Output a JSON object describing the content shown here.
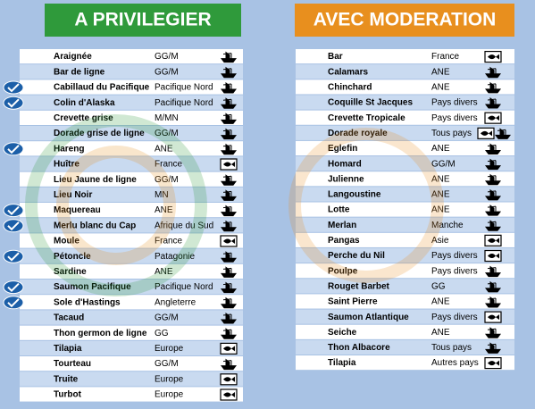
{
  "left": {
    "title": "A PRIVILEGIER",
    "rows": [
      [
        "Araignée",
        "GG/M"
      ],
      [
        "Bar de ligne",
        "GG/M"
      ],
      [
        "Cabillaud du Pacifique",
        "Pacifique Nord"
      ],
      [
        "Colin d'Alaska",
        "Pacifique Nord"
      ],
      [
        "Crevette grise",
        "M/MN"
      ],
      [
        "Dorade grise de ligne",
        "GG/M"
      ],
      [
        "Hareng",
        "ANE"
      ],
      [
        "Huître",
        "France"
      ],
      [
        "Lieu Jaune de ligne",
        "GG/M"
      ],
      [
        "Lieu Noir",
        "MN"
      ],
      [
        "Maquereau",
        "ANE"
      ],
      [
        "Merlu blanc du Cap",
        "Afrique du Sud"
      ],
      [
        "Moule",
        "France"
      ],
      [
        "Pétoncle",
        "Patagonie"
      ],
      [
        "Sardine",
        "ANE"
      ],
      [
        "Saumon Pacifique",
        "Pacifique Nord"
      ],
      [
        "Sole d'Hastings",
        "Angleterre"
      ],
      [
        "Tacaud",
        "GG/M"
      ],
      [
        "Thon germon de ligne",
        "GG"
      ],
      [
        "Tilapia",
        "Europe"
      ],
      [
        "Tourteau",
        "GG/M"
      ],
      [
        "Truite",
        "Europe"
      ],
      [
        "Turbot",
        "Europe"
      ]
    ]
  },
  "right": {
    "title": "AVEC MODERATION",
    "rows": [
      [
        "Bar",
        "France"
      ],
      [
        "Calamars",
        "ANE"
      ],
      [
        "Chinchard",
        "ANE"
      ],
      [
        "Coquille St Jacques",
        "Pays divers"
      ],
      [
        "Crevette Tropicale",
        "Pays divers"
      ],
      [
        "Dorade royale",
        "Tous pays"
      ],
      [
        "Eglefin",
        "ANE"
      ],
      [
        "Homard",
        "GG/M"
      ],
      [
        "Julienne",
        "ANE"
      ],
      [
        "Langoustine",
        "ANE"
      ],
      [
        "Lotte",
        "ANE"
      ],
      [
        "Merlan",
        "Manche"
      ],
      [
        "Pangas",
        "Asie"
      ],
      [
        "Perche du Nil",
        "Pays divers"
      ],
      [
        "Poulpe",
        "Pays divers"
      ],
      [
        "Rouget Barbet",
        "GG"
      ],
      [
        "Saint Pierre",
        "ANE"
      ],
      [
        "Saumon Atlantique",
        "Pays divers"
      ],
      [
        "Seiche",
        "ANE"
      ],
      [
        "Thon Albacore",
        "Tous pays"
      ],
      [
        "Tilapia",
        "Autres pays"
      ]
    ]
  }
}
